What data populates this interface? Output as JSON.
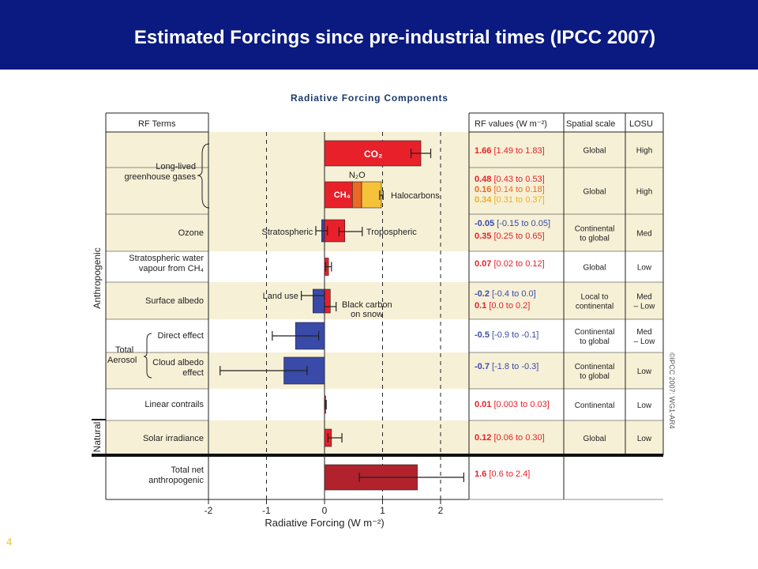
{
  "slide": {
    "title": "Estimated Forcings since pre-industrial times (IPCC 2007)",
    "number": "4"
  },
  "colors": {
    "header": "#0a1a80",
    "band": "#f6f0d6",
    "positive": "#e8202a",
    "negative": "#3a4aa8",
    "halocarbons": "#f6c23a",
    "n2o": "#e96a24",
    "total": "#b1222c",
    "positive_text": "#e8202a",
    "negative_text": "#3a4aa8",
    "halocarbon_text": "#f0b020"
  },
  "chart_data": {
    "type": "bar",
    "title": "Radiative Forcing Components",
    "xlabel": "Radiative Forcing (W m⁻²)",
    "xlim": [
      -2,
      2.5
    ],
    "xticks": [
      -2,
      -1,
      0,
      1,
      2
    ],
    "dashed_lines": [
      -1,
      1,
      2
    ],
    "grid": false,
    "orientation": "horizontal",
    "headers": {
      "terms": "RF Terms",
      "values": "RF values (W m⁻²)",
      "spatial": "Spatial scale",
      "losu": "LOSU"
    },
    "groups": {
      "anthropogenic": "Anthropogenic",
      "natural": "Natural",
      "long_lived": "Long-lived greenhouse gases",
      "total_aerosol": "Total Aerosol"
    },
    "rows": [
      {
        "term": "",
        "components": [
          {
            "name": "CO₂",
            "value": 1.66,
            "range": [
              1.49,
              1.83
            ],
            "stack": 0,
            "label_inside": true
          }
        ],
        "rf_values": [
          "1.66 [1.49 to 1.83]"
        ],
        "spatial": "Global",
        "losu": "High"
      },
      {
        "term": "",
        "components": [
          {
            "name": "CH₄",
            "value": 0.48,
            "range": [
              0.43,
              0.53
            ],
            "stack": 0,
            "label_inside": true
          },
          {
            "name": "N₂O",
            "value": 0.16,
            "range": [
              0.14,
              0.18
            ],
            "stack": 1,
            "label_above": true
          },
          {
            "name": "Halocarbons",
            "value": 0.34,
            "range": [
              0.31,
              0.37
            ],
            "stack": 2,
            "label_right": true
          }
        ],
        "rf_values": [
          "0.48 [0.43 to 0.53]",
          "0.16 [0.14 to 0.18]",
          "0.34 [0.31 to 0.37]"
        ],
        "spatial": "Global",
        "losu": "High"
      },
      {
        "term": "Ozone",
        "components": [
          {
            "name": "Stratospheric",
            "value": -0.05,
            "range": [
              -0.15,
              0.05
            ]
          },
          {
            "name": "Tropospheric",
            "value": 0.35,
            "range": [
              0.25,
              0.65
            ]
          }
        ],
        "rf_values": [
          "-0.05 [-0.15 to 0.05]",
          "0.35 [0.25 to 0.65]"
        ],
        "spatial": "Continental to global",
        "losu": "Med"
      },
      {
        "term": "Stratospheric water vapour from CH₄",
        "components": [
          {
            "name": "",
            "value": 0.07,
            "range": [
              0.02,
              0.12
            ]
          }
        ],
        "rf_values": [
          "0.07 [0.02 to 0.12]"
        ],
        "spatial": "Global",
        "losu": "Low"
      },
      {
        "term": "Surface albedo",
        "components": [
          {
            "name": "Land use",
            "value": -0.2,
            "range": [
              -0.4,
              0.0
            ]
          },
          {
            "name": "Black carbon on snow",
            "value": 0.1,
            "range": [
              0.0,
              0.2
            ]
          }
        ],
        "rf_values": [
          "-0.2 [-0.4 to 0.0]",
          "0.1 [0.0 to 0.2]"
        ],
        "spatial": "Local to continental",
        "losu": "Med – Low"
      },
      {
        "term": "Direct effect",
        "components": [
          {
            "name": "",
            "value": -0.5,
            "range": [
              -0.9,
              -0.1
            ]
          }
        ],
        "rf_values": [
          "-0.5 [-0.9 to -0.1]"
        ],
        "spatial": "Continental to global",
        "losu": "Med – Low"
      },
      {
        "term": "Cloud albedo effect",
        "components": [
          {
            "name": "",
            "value": -0.7,
            "range": [
              -1.8,
              -0.3
            ]
          }
        ],
        "rf_values": [
          "-0.7 [-1.8 to -0.3]"
        ],
        "spatial": "Continental to global",
        "losu": "Low"
      },
      {
        "term": "Linear contrails",
        "components": [
          {
            "name": "",
            "value": 0.01,
            "range": [
              0.003,
              0.03
            ]
          }
        ],
        "rf_values": [
          "0.01 [0.003 to 0.03]"
        ],
        "spatial": "Continental",
        "losu": "Low"
      },
      {
        "term": "Solar irradiance",
        "components": [
          {
            "name": "",
            "value": 0.12,
            "range": [
              0.06,
              0.3
            ]
          }
        ],
        "rf_values": [
          "0.12 [0.06 to 0.30]"
        ],
        "spatial": "Global",
        "losu": "Low"
      },
      {
        "term": "Total net anthropogenic",
        "components": [
          {
            "name": "",
            "value": 1.6,
            "range": [
              0.6,
              2.4
            ]
          }
        ],
        "rf_values": [
          "1.6 [0.6 to 2.4]"
        ],
        "spatial": "",
        "losu": ""
      }
    ],
    "copyright": "©IPCC 2007: WG1-AR4"
  }
}
